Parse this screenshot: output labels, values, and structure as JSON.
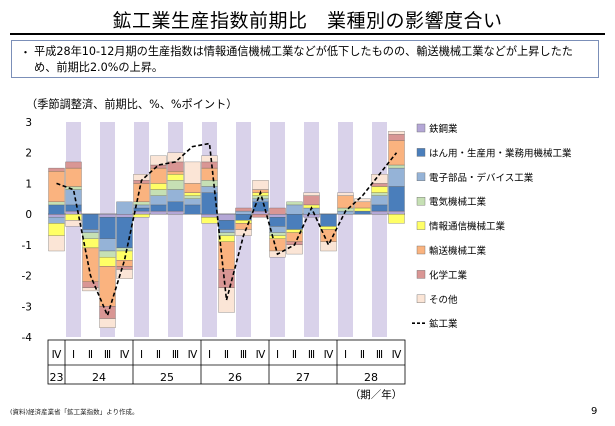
{
  "title": "鉱工業生産指数前期比　業種別の影響度合い",
  "note": {
    "bullet": "・",
    "text": "平成28年10-12月期の生産指数は情報通信機械工業などが低下したものの、輸送機械工業などが上昇したため、前期比2.0%の上昇。"
  },
  "unit_label": "（季節調整済、前期比、%、%ポイント）",
  "source": "(資料)経済産業省「鉱工業指数」より作成。",
  "page_number": "9",
  "axis_unit_label": "（期／年）",
  "chart_data": {
    "type": "bar",
    "stacked": true,
    "ylim": [
      -4,
      3
    ],
    "yticks": [
      -4,
      -3,
      -2,
      -1,
      0,
      1,
      2,
      3
    ],
    "quarters": [
      "Ⅳ",
      "Ⅰ",
      "Ⅱ",
      "Ⅲ",
      "Ⅳ",
      "Ⅰ",
      "Ⅱ",
      "Ⅲ",
      "Ⅳ",
      "Ⅰ",
      "Ⅱ",
      "Ⅲ",
      "Ⅳ",
      "Ⅰ",
      "Ⅱ",
      "Ⅲ",
      "Ⅳ",
      "Ⅰ",
      "Ⅱ",
      "Ⅲ",
      "Ⅳ"
    ],
    "years": [
      {
        "label": "23",
        "start": 0,
        "span": 1
      },
      {
        "label": "24",
        "start": 1,
        "span": 4
      },
      {
        "label": "25",
        "start": 5,
        "span": 4
      },
      {
        "label": "26",
        "start": 9,
        "span": 4
      },
      {
        "label": "27",
        "start": 13,
        "span": 4
      },
      {
        "label": "28",
        "start": 17,
        "span": 4
      }
    ],
    "shaded_quarters": [
      1,
      3,
      5,
      7,
      9,
      11,
      13,
      15,
      17,
      19
    ],
    "legend_position": "right",
    "series": [
      {
        "name": "鉄鋼業",
        "color": "#b4a7d6",
        "values": [
          -0.1,
          0.1,
          0.0,
          -0.1,
          -0.1,
          0.1,
          0.1,
          0.1,
          0.0,
          -0.1,
          -0.2,
          0.0,
          0.1,
          -0.1,
          0.0,
          -0.1,
          0.0,
          0.0,
          0.0,
          0.1,
          0.1
        ]
      },
      {
        "name": "はん用・生産用・業務用機械工業",
        "color": "#4a7ebb",
        "values": [
          0.3,
          0.2,
          -0.5,
          -0.7,
          -1.0,
          0.1,
          0.2,
          0.3,
          0.3,
          0.7,
          -0.3,
          -0.2,
          0.3,
          -0.3,
          -0.5,
          0.0,
          -0.4,
          0.0,
          0.1,
          0.2,
          0.8
        ]
      },
      {
        "name": "電子部品・デバイス工業",
        "color": "#95b3d7",
        "values": [
          -0.2,
          0.5,
          -0.1,
          -0.4,
          0.4,
          0.1,
          0.3,
          0.4,
          0.2,
          0.2,
          -0.1,
          0.1,
          0.1,
          -0.2,
          0.3,
          0.2,
          0.0,
          0.1,
          0.0,
          0.3,
          0.6
        ]
      },
      {
        "name": "電気機械工業",
        "color": "#c6e0b4",
        "values": [
          0.1,
          0.1,
          -0.2,
          -0.2,
          -0.1,
          0.1,
          0.2,
          0.3,
          0.1,
          0.2,
          -0.1,
          0.0,
          0.1,
          -0.1,
          0.1,
          0.0,
          0.0,
          0.1,
          0.0,
          0.1,
          0.1
        ]
      },
      {
        "name": "情報通信機械工業",
        "color": "#ffff66",
        "values": [
          -0.4,
          -0.2,
          -0.3,
          -0.3,
          -0.3,
          -0.1,
          0.2,
          0.2,
          0.1,
          -0.2,
          -0.2,
          -0.1,
          0.1,
          -0.1,
          -0.1,
          0.1,
          -0.1,
          0.0,
          0.1,
          0.2,
          -0.3
        ]
      },
      {
        "name": "輸送機械工業",
        "color": "#fab37f",
        "values": [
          1.0,
          0.6,
          -1.1,
          -1.3,
          -0.2,
          0.6,
          0.5,
          0.1,
          0.3,
          0.4,
          -0.9,
          -0.2,
          0.1,
          -0.4,
          -0.3,
          0.0,
          -0.4,
          0.4,
          0.2,
          0.0,
          0.8
        ]
      },
      {
        "name": "化学工業",
        "color": "#d99694",
        "values": [
          0.1,
          0.2,
          -0.2,
          -0.4,
          -0.1,
          0.1,
          0.1,
          0.3,
          0.0,
          0.2,
          -0.6,
          0.1,
          -0.1,
          0.2,
          -0.1,
          0.3,
          0.0,
          0.0,
          0.0,
          0.1,
          0.2
        ]
      },
      {
        "name": "その他",
        "color": "#fbe5d6",
        "values": [
          -0.5,
          -0.2,
          -0.1,
          -0.3,
          -0.3,
          0.2,
          0.3,
          0.3,
          0.7,
          0.2,
          -0.8,
          -0.2,
          0.3,
          -0.2,
          -0.3,
          0.1,
          -0.3,
          0.1,
          0.1,
          0.3,
          0.1
        ]
      }
    ],
    "line": {
      "name": "鉱工業",
      "color": "#000000",
      "dash": true,
      "values": [
        1.0,
        0.8,
        -2.0,
        -3.3,
        -1.5,
        1.1,
        1.6,
        1.7,
        2.2,
        2.3,
        -2.8,
        -0.7,
        0.7,
        -1.3,
        -1.0,
        0.2,
        -1.0,
        0.1,
        0.6,
        1.3,
        2.0
      ]
    }
  }
}
